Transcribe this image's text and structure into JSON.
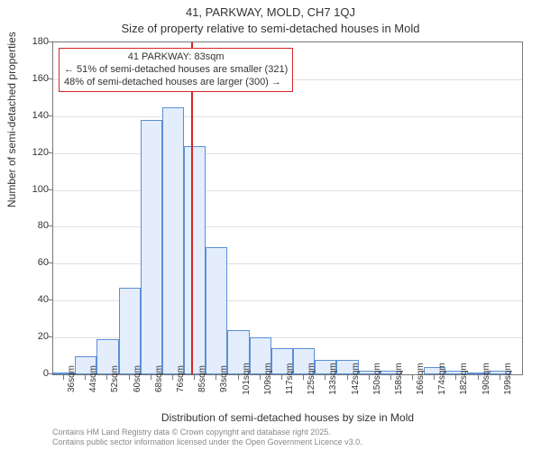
{
  "title_line1": "41, PARKWAY, MOLD, CH7 1QJ",
  "title_line2": "Size of property relative to semi-detached houses in Mold",
  "ylabel": "Number of semi-detached properties",
  "xlabel": "Distribution of semi-detached houses by size in Mold",
  "attribution_line1": "Contains HM Land Registry data © Crown copyright and database right 2025.",
  "attribution_line2": "Contains public sector information licensed under the Open Government Licence v3.0.",
  "annotation": {
    "line1": "41 PARKWAY: 83sqm",
    "line2": "← 51% of semi-detached houses are smaller (321)",
    "line3": "48% of semi-detached houses are larger (300) →"
  },
  "chart": {
    "type": "histogram",
    "background_color": "#ffffff",
    "grid_color": "#e0e0e0",
    "axis_color": "#777777",
    "bar_fill": "#e3edfc",
    "bar_border": "#5b8fd6",
    "refline_color": "#d62728",
    "refline_value": 83,
    "x_start": 36,
    "x_step": 8,
    "x_suffix": "sqm",
    "xlim": [
      32,
      204
    ],
    "ylim": [
      0,
      180
    ],
    "ytick_step": 20,
    "title_fontsize": 13,
    "label_fontsize": 12,
    "tick_fontsize": 11,
    "categories": [
      "36sqm",
      "44sqm",
      "52sqm",
      "60sqm",
      "68sqm",
      "76sqm",
      "85sqm",
      "93sqm",
      "101sqm",
      "109sqm",
      "117sqm",
      "125sqm",
      "133sqm",
      "142sqm",
      "150sqm",
      "158sqm",
      "166sqm",
      "174sqm",
      "182sqm",
      "190sqm",
      "199sqm"
    ],
    "values": [
      1,
      10,
      19,
      47,
      138,
      145,
      124,
      69,
      24,
      20,
      14,
      14,
      8,
      8,
      2,
      2,
      0,
      4,
      2,
      1,
      2
    ],
    "annotation_box": {
      "border_color": "#d62728",
      "bg": "#ffffff",
      "fontsize": 11
    }
  }
}
